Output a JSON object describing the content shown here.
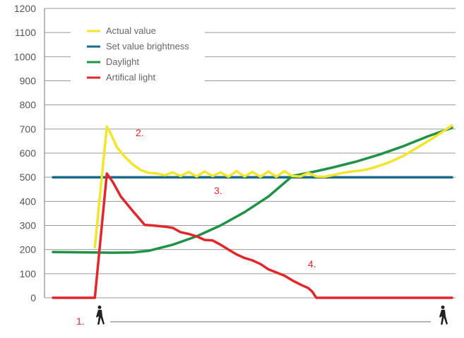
{
  "chart_data": {
    "type": "line",
    "title": "",
    "xlabel": "",
    "ylabel": "",
    "ylim": [
      0,
      1200
    ],
    "yticks": [
      0,
      100,
      200,
      300,
      400,
      500,
      600,
      700,
      800,
      900,
      1000,
      1100,
      1200
    ],
    "ytick_labels": [
      "0",
      "100",
      "200",
      "300",
      "400",
      "500",
      "600",
      "700",
      "800",
      "900",
      "1000",
      "1100",
      "1200"
    ],
    "grid": true,
    "legend_position": "top-left",
    "x_axis_note": "time (arbitrary), person icons mark arrival and departure",
    "series": [
      {
        "name": "Actual value",
        "color": "#f2e52b",
        "x": [
          0.105,
          0.135,
          0.145,
          0.16,
          0.18,
          0.2,
          0.22,
          0.24,
          0.26,
          0.28,
          0.3,
          0.32,
          0.34,
          0.36,
          0.38,
          0.4,
          0.42,
          0.44,
          0.46,
          0.48,
          0.5,
          0.52,
          0.54,
          0.56,
          0.58,
          0.6,
          0.62,
          0.64,
          0.66,
          0.68,
          0.7,
          0.72,
          0.74,
          0.76,
          0.78,
          0.8,
          0.84,
          0.88,
          0.92,
          0.96,
          1.0
        ],
        "values": [
          210,
          710,
          680,
          625,
          585,
          553,
          530,
          518,
          516,
          508,
          520,
          505,
          522,
          503,
          524,
          505,
          520,
          502,
          525,
          503,
          522,
          502,
          524,
          502,
          525,
          505,
          503,
          518,
          503,
          502,
          508,
          516,
          522,
          526,
          530,
          538,
          560,
          590,
          630,
          670,
          715
        ]
      },
      {
        "name": "Set value brightness",
        "color": "#1a6b8a",
        "x": [
          0.0,
          1.0
        ],
        "values": [
          500,
          500
        ]
      },
      {
        "name": "Daylight",
        "color": "#1f9245",
        "x": [
          0.0,
          0.1,
          0.15,
          0.2,
          0.24,
          0.3,
          0.36,
          0.42,
          0.48,
          0.54,
          0.6,
          0.66,
          0.7,
          0.76,
          0.82,
          0.88,
          0.94,
          1.0
        ],
        "values": [
          190,
          188,
          187,
          188,
          195,
          220,
          255,
          300,
          355,
          420,
          505,
          525,
          540,
          565,
          595,
          630,
          670,
          705
        ]
      },
      {
        "name": "Artifical light",
        "color": "#e3262b",
        "x": [
          0.0,
          0.105,
          0.135,
          0.15,
          0.17,
          0.2,
          0.23,
          0.25,
          0.28,
          0.3,
          0.32,
          0.34,
          0.36,
          0.38,
          0.4,
          0.42,
          0.44,
          0.46,
          0.48,
          0.5,
          0.52,
          0.54,
          0.56,
          0.58,
          0.6,
          0.62,
          0.64,
          0.65,
          0.66,
          1.0
        ],
        "values": [
          0,
          0,
          515,
          480,
          420,
          360,
          302,
          300,
          295,
          290,
          272,
          265,
          255,
          240,
          238,
          220,
          200,
          180,
          165,
          155,
          140,
          118,
          105,
          92,
          72,
          55,
          40,
          25,
          0,
          0
        ]
      }
    ],
    "annotations": [
      "1.",
      "2.",
      "3.",
      "4."
    ]
  }
}
